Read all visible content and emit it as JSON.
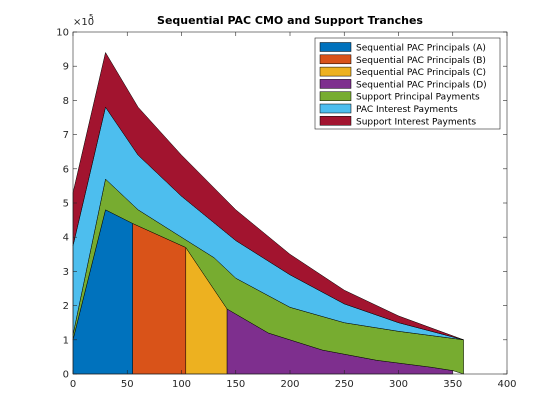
{
  "chart_data": {
    "type": "area",
    "title": "Sequential PAC CMO and Support Tranches",
    "xlabel": "",
    "ylabel": "",
    "xlim": [
      0,
      400
    ],
    "ylim": [
      0,
      1000000
    ],
    "xticks": [
      0,
      50,
      100,
      150,
      200,
      250,
      300,
      350,
      400
    ],
    "yticks": [
      0,
      1,
      2,
      3,
      4,
      5,
      6,
      7,
      8,
      9,
      10
    ],
    "y_exponent_label": "×10",
    "y_exponent_power": "5",
    "grid": false,
    "legend_position": "top-right",
    "x_breakpoints": [
      0,
      30,
      55,
      104,
      142,
      360
    ],
    "series": [
      {
        "name": "Sequential PAC Principals (A)",
        "color": "#0072BD",
        "points": [
          [
            0,
            0
          ],
          [
            0,
            100000
          ],
          [
            30,
            480000
          ],
          [
            55,
            440000
          ],
          [
            55,
            0
          ]
        ]
      },
      {
        "name": "Sequential PAC Principals (B)",
        "color": "#D95319",
        "points": [
          [
            55,
            0
          ],
          [
            55,
            440000
          ],
          [
            104,
            370000
          ],
          [
            104,
            0
          ]
        ]
      },
      {
        "name": "Sequential PAC Principals (C)",
        "color": "#EDB120",
        "points": [
          [
            104,
            0
          ],
          [
            104,
            370000
          ],
          [
            142,
            190000
          ],
          [
            142,
            0
          ]
        ]
      },
      {
        "name": "Sequential PAC Principals (D)",
        "color": "#7E2F8E",
        "points": [
          [
            142,
            0
          ],
          [
            142,
            190000
          ],
          [
            180,
            120000
          ],
          [
            230,
            70000
          ],
          [
            280,
            40000
          ],
          [
            330,
            20000
          ],
          [
            350,
            10000
          ],
          [
            350,
            0
          ]
        ]
      },
      {
        "name": "Support Principal Payments",
        "color": "#77AC30",
        "upper": [
          [
            0,
            115000
          ],
          [
            30,
            570000
          ],
          [
            60,
            480000
          ],
          [
            100,
            400000
          ],
          [
            130,
            340000
          ],
          [
            150,
            280000
          ],
          [
            200,
            195000
          ],
          [
            250,
            150000
          ],
          [
            300,
            125000
          ],
          [
            360,
            100000
          ]
        ],
        "lower": [
          [
            0,
            100000
          ],
          [
            30,
            480000
          ],
          [
            55,
            440000
          ],
          [
            104,
            370000
          ],
          [
            142,
            190000
          ],
          [
            180,
            120000
          ],
          [
            230,
            70000
          ],
          [
            280,
            40000
          ],
          [
            330,
            20000
          ],
          [
            350,
            10000
          ],
          [
            360,
            0
          ]
        ]
      },
      {
        "name": "PAC Interest Payments",
        "color": "#4DBEEE",
        "upper": [
          [
            0,
            375000
          ],
          [
            30,
            780000
          ],
          [
            60,
            640000
          ],
          [
            100,
            520000
          ],
          [
            150,
            390000
          ],
          [
            200,
            290000
          ],
          [
            250,
            205000
          ],
          [
            300,
            150000
          ],
          [
            360,
            100000
          ]
        ],
        "lower": [
          [
            0,
            115000
          ],
          [
            30,
            570000
          ],
          [
            60,
            480000
          ],
          [
            100,
            400000
          ],
          [
            130,
            340000
          ],
          [
            150,
            280000
          ],
          [
            200,
            195000
          ],
          [
            250,
            150000
          ],
          [
            300,
            125000
          ],
          [
            360,
            100000
          ]
        ]
      },
      {
        "name": "Support Interest Payments",
        "color": "#A2142F",
        "upper": [
          [
            0,
            530000
          ],
          [
            30,
            940000
          ],
          [
            60,
            780000
          ],
          [
            100,
            640000
          ],
          [
            150,
            480000
          ],
          [
            200,
            350000
          ],
          [
            250,
            245000
          ],
          [
            300,
            170000
          ],
          [
            360,
            100000
          ]
        ],
        "lower": [
          [
            0,
            375000
          ],
          [
            30,
            780000
          ],
          [
            60,
            640000
          ],
          [
            100,
            520000
          ],
          [
            150,
            390000
          ],
          [
            200,
            290000
          ],
          [
            250,
            205000
          ],
          [
            300,
            150000
          ],
          [
            360,
            100000
          ]
        ]
      }
    ]
  }
}
